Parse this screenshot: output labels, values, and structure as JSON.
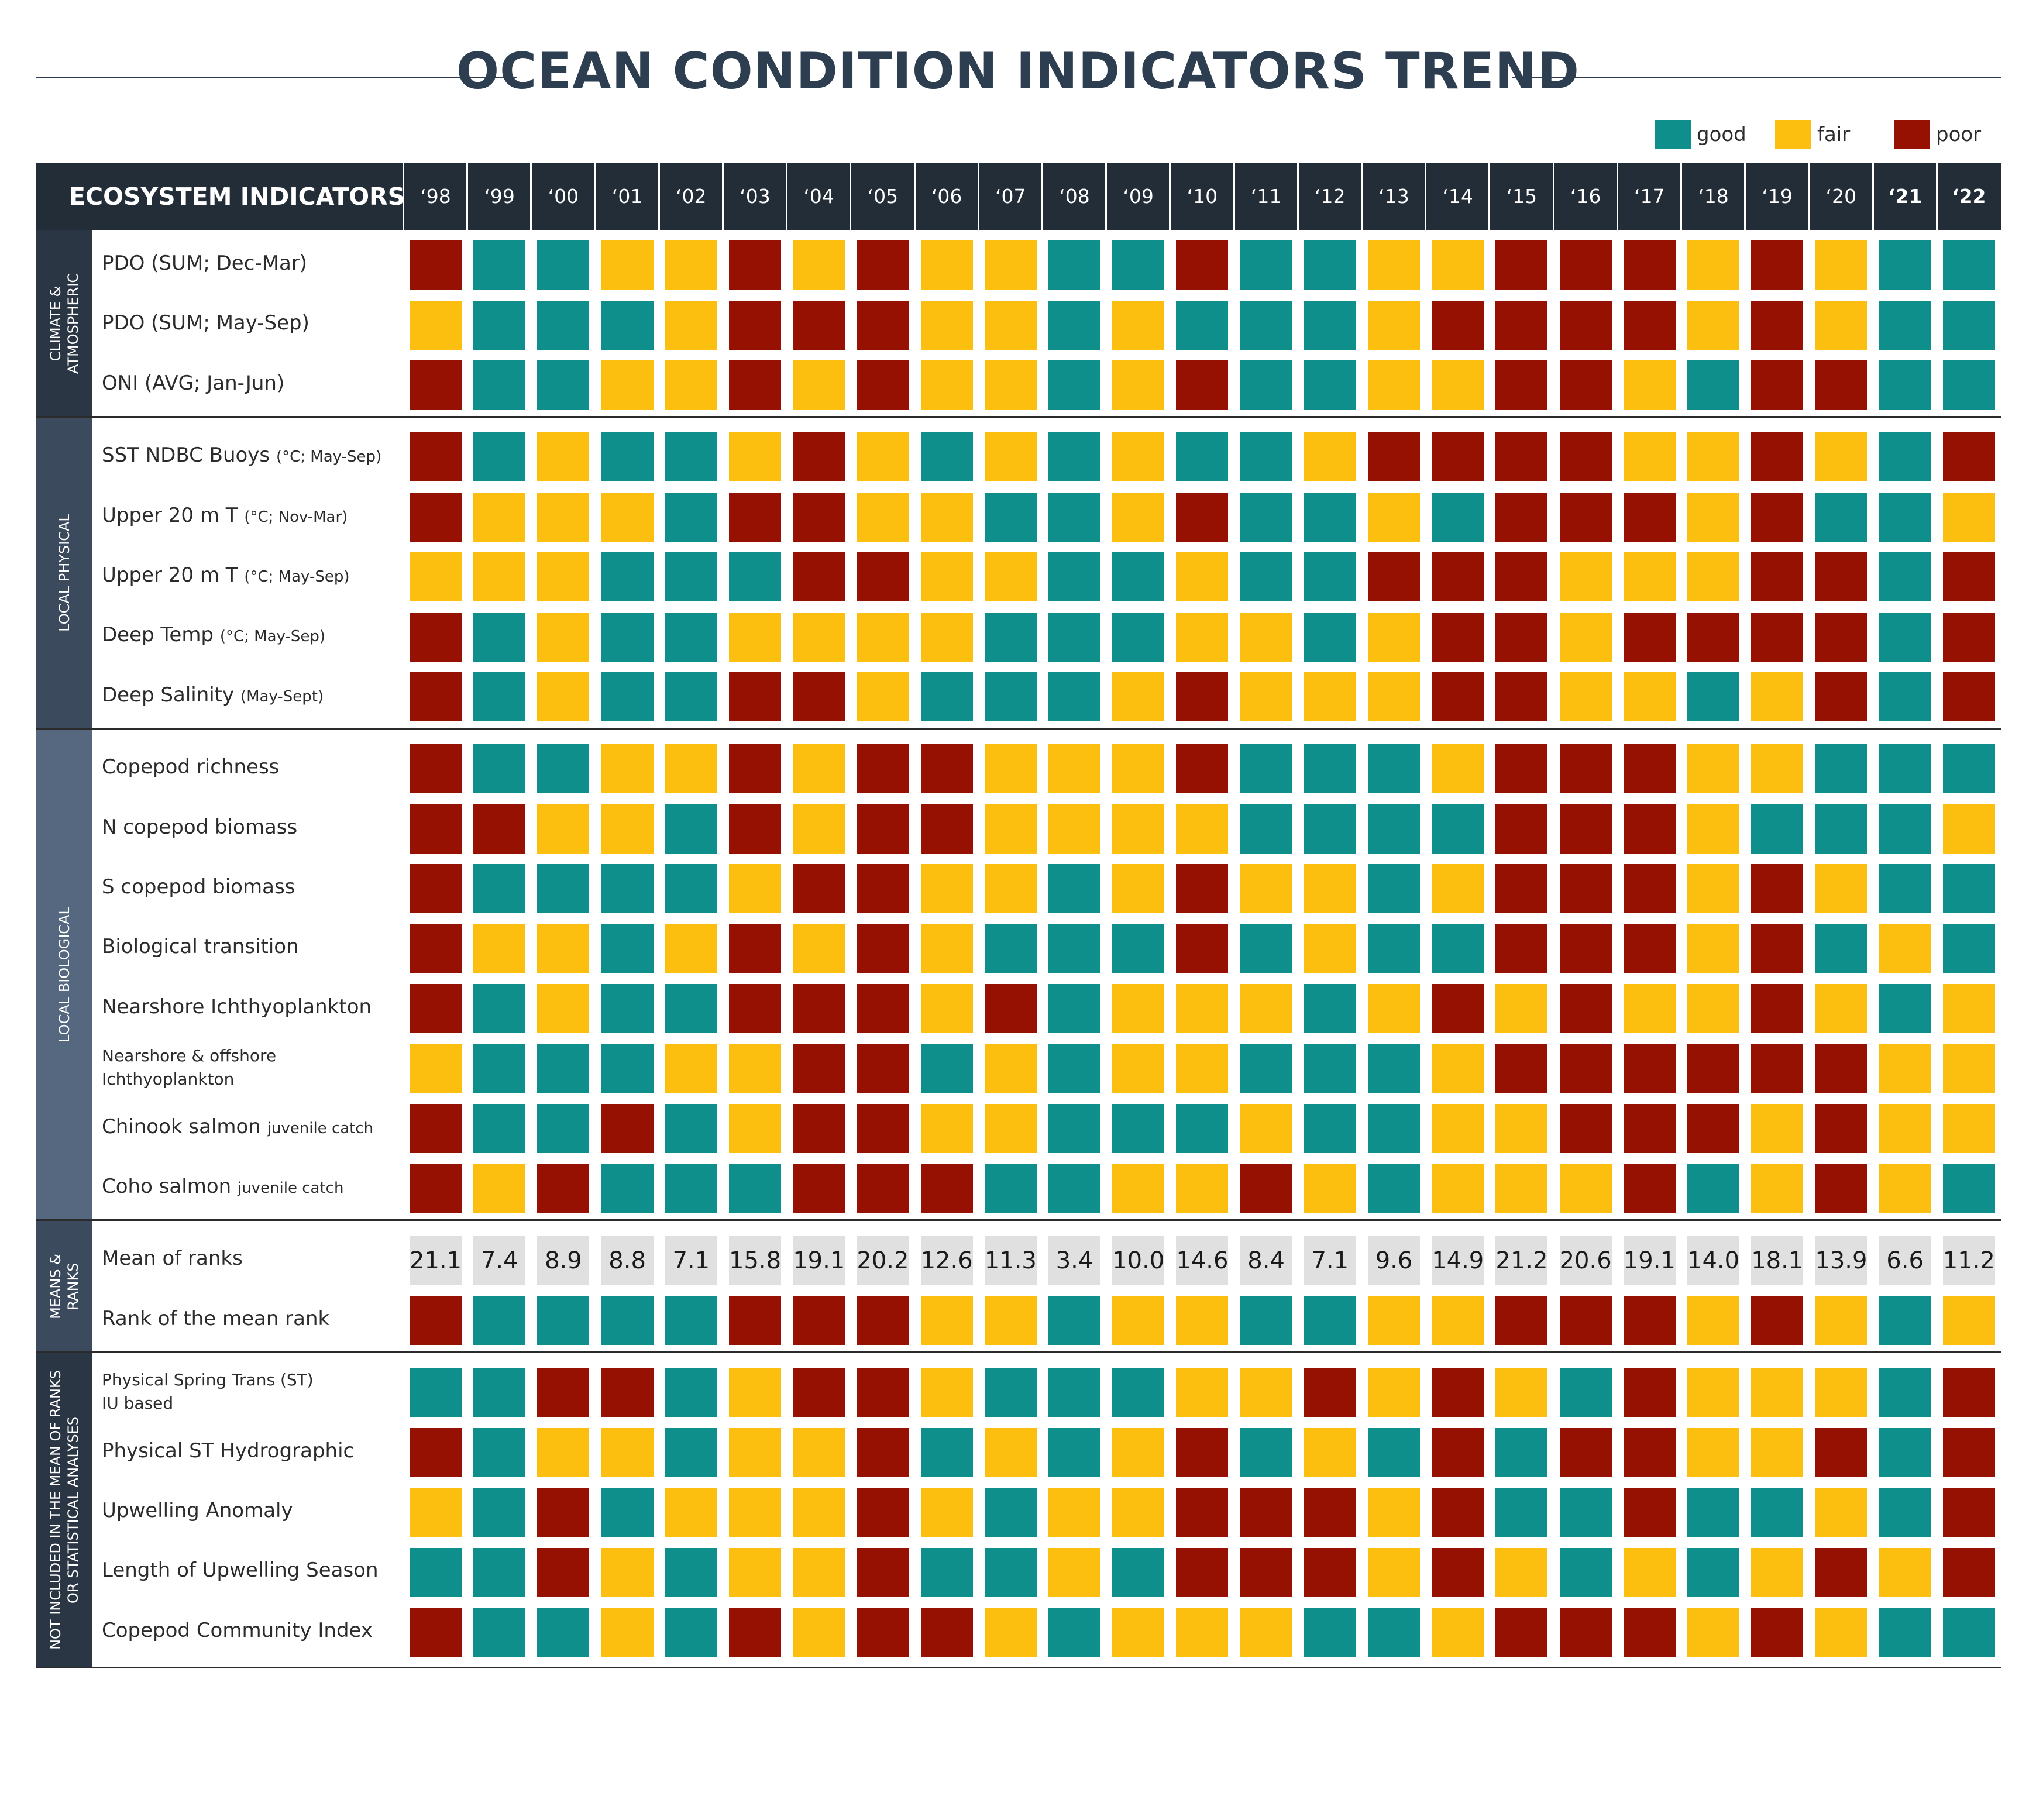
{
  "title": "OCEAN CONDITION INDICATORS TREND",
  "legend": [
    {
      "key": "good",
      "label": "good",
      "color": "#0e8f8c"
    },
    {
      "key": "fair",
      "label": "fair",
      "color": "#fdbf0f"
    },
    {
      "key": "poor",
      "label": "poor",
      "color": "#971102"
    }
  ],
  "colors": {
    "good": "#0e8f8c",
    "fair": "#fdbf0f",
    "poor": "#971102",
    "header_bg": "#232d38",
    "mean_cell_bg": "#e0e0e0"
  },
  "header": {
    "title": "ECOSYSTEM INDICATORS"
  },
  "chart_data": {
    "type": "heatmap",
    "title": "OCEAN CONDITION INDICATORS TREND",
    "categories": [
      "‘98",
      "‘99",
      "‘00",
      "‘01",
      "‘02",
      "‘03",
      "‘04",
      "‘05",
      "‘06",
      "‘07",
      "‘08",
      "‘09",
      "‘10",
      "‘11",
      "‘12",
      "‘13",
      "‘14",
      "‘15",
      "‘16",
      "‘17",
      "‘18",
      "‘19",
      "‘20",
      "‘21",
      "‘22"
    ],
    "bold_categories": [
      "‘21",
      "‘22"
    ],
    "groups": [
      {
        "label": "CLIMATE & ATMOSPHERIC",
        "color": "#2b3644",
        "rows": [
          {
            "label": "PDO (SUM; Dec-Mar)",
            "small": "",
            "values": [
              "poor",
              "good",
              "good",
              "fair",
              "fair",
              "poor",
              "fair",
              "poor",
              "fair",
              "fair",
              "good",
              "good",
              "poor",
              "good",
              "good",
              "fair",
              "fair",
              "poor",
              "poor",
              "poor",
              "fair",
              "poor",
              "fair",
              "good",
              "good"
            ]
          },
          {
            "label": "PDO (SUM; May-Sep)",
            "small": "",
            "values": [
              "fair",
              "good",
              "good",
              "good",
              "fair",
              "poor",
              "poor",
              "poor",
              "fair",
              "fair",
              "good",
              "fair",
              "good",
              "good",
              "good",
              "fair",
              "poor",
              "poor",
              "poor",
              "poor",
              "fair",
              "poor",
              "fair",
              "good",
              "good"
            ]
          },
          {
            "label": "ONI (AVG; Jan-Jun)",
            "small": "",
            "values": [
              "poor",
              "good",
              "good",
              "fair",
              "fair",
              "poor",
              "fair",
              "poor",
              "fair",
              "fair",
              "good",
              "fair",
              "poor",
              "good",
              "good",
              "fair",
              "fair",
              "poor",
              "poor",
              "fair",
              "good",
              "poor",
              "poor",
              "good",
              "good"
            ]
          }
        ]
      },
      {
        "label": "LOCAL PHYSICAL",
        "color": "#3b4a5d",
        "rows": [
          {
            "label": "SST NDBC Buoys ",
            "small": "(°C; May-Sep)",
            "values": [
              "poor",
              "good",
              "fair",
              "good",
              "good",
              "fair",
              "poor",
              "fair",
              "good",
              "fair",
              "good",
              "fair",
              "good",
              "good",
              "fair",
              "poor",
              "poor",
              "poor",
              "poor",
              "fair",
              "fair",
              "poor",
              "fair",
              "good",
              "poor"
            ]
          },
          {
            "label": "Upper 20 m T ",
            "small": "(°C; Nov-Mar)",
            "values": [
              "poor",
              "fair",
              "fair",
              "fair",
              "good",
              "poor",
              "poor",
              "fair",
              "fair",
              "good",
              "good",
              "fair",
              "poor",
              "good",
              "good",
              "fair",
              "good",
              "poor",
              "poor",
              "poor",
              "fair",
              "poor",
              "good",
              "good",
              "fair"
            ]
          },
          {
            "label": "Upper 20 m T ",
            "small": "(°C; May-Sep)",
            "values": [
              "fair",
              "fair",
              "fair",
              "good",
              "good",
              "good",
              "poor",
              "poor",
              "fair",
              "fair",
              "good",
              "good",
              "fair",
              "good",
              "good",
              "poor",
              "poor",
              "poor",
              "fair",
              "fair",
              "fair",
              "poor",
              "poor",
              "good",
              "poor"
            ]
          },
          {
            "label": "Deep Temp ",
            "small": "(°C; May-Sep)",
            "values": [
              "poor",
              "good",
              "fair",
              "good",
              "good",
              "fair",
              "fair",
              "fair",
              "fair",
              "good",
              "good",
              "good",
              "fair",
              "fair",
              "good",
              "fair",
              "poor",
              "poor",
              "fair",
              "poor",
              "poor",
              "poor",
              "poor",
              "good",
              "poor"
            ]
          },
          {
            "label": "Deep Salinity ",
            "small": "(May-Sept)",
            "values": [
              "poor",
              "good",
              "fair",
              "good",
              "good",
              "poor",
              "poor",
              "fair",
              "good",
              "good",
              "good",
              "fair",
              "poor",
              "fair",
              "fair",
              "fair",
              "poor",
              "poor",
              "fair",
              "fair",
              "good",
              "fair",
              "poor",
              "good",
              "poor"
            ]
          }
        ]
      },
      {
        "label": "LOCAL BIOLOGICAL",
        "color": "#56687f",
        "rows": [
          {
            "label": "Copepod richness",
            "small": "",
            "values": [
              "poor",
              "good",
              "good",
              "fair",
              "fair",
              "poor",
              "fair",
              "poor",
              "poor",
              "fair",
              "fair",
              "fair",
              "poor",
              "good",
              "good",
              "good",
              "fair",
              "poor",
              "poor",
              "poor",
              "fair",
              "fair",
              "good",
              "good",
              "good"
            ]
          },
          {
            "label": "N copepod biomass",
            "small": "",
            "values": [
              "poor",
              "poor",
              "fair",
              "fair",
              "good",
              "poor",
              "fair",
              "poor",
              "poor",
              "fair",
              "fair",
              "fair",
              "fair",
              "good",
              "good",
              "good",
              "good",
              "poor",
              "poor",
              "poor",
              "fair",
              "good",
              "good",
              "good",
              "fair"
            ]
          },
          {
            "label": "S copepod biomass",
            "small": "",
            "values": [
              "poor",
              "good",
              "good",
              "good",
              "good",
              "fair",
              "poor",
              "poor",
              "fair",
              "fair",
              "good",
              "fair",
              "poor",
              "fair",
              "fair",
              "good",
              "fair",
              "poor",
              "poor",
              "poor",
              "fair",
              "poor",
              "fair",
              "good",
              "good"
            ]
          },
          {
            "label": "Biological transition",
            "small": "",
            "values": [
              "poor",
              "fair",
              "fair",
              "good",
              "fair",
              "poor",
              "fair",
              "poor",
              "fair",
              "good",
              "good",
              "good",
              "poor",
              "good",
              "fair",
              "good",
              "good",
              "poor",
              "poor",
              "poor",
              "fair",
              "poor",
              "good",
              "fair",
              "good"
            ]
          },
          {
            "label": "Nearshore Ichthyoplankton",
            "small": "",
            "values": [
              "poor",
              "good",
              "fair",
              "good",
              "good",
              "poor",
              "poor",
              "poor",
              "fair",
              "poor",
              "good",
              "fair",
              "fair",
              "fair",
              "good",
              "fair",
              "poor",
              "fair",
              "poor",
              "fair",
              "fair",
              "poor",
              "fair",
              "good",
              "fair"
            ]
          },
          {
            "label": "Nearshore & offshore",
            "label2": "Ichthyoplankton",
            "small": "",
            "values": [
              "fair",
              "good",
              "good",
              "good",
              "fair",
              "fair",
              "poor",
              "poor",
              "good",
              "fair",
              "good",
              "fair",
              "fair",
              "good",
              "good",
              "good",
              "fair",
              "poor",
              "poor",
              "poor",
              "poor",
              "poor",
              "poor",
              "fair",
              "fair"
            ]
          },
          {
            "label": "Chinook salmon ",
            "small": "juvenile catch",
            "values": [
              "poor",
              "good",
              "good",
              "poor",
              "good",
              "fair",
              "poor",
              "poor",
              "fair",
              "fair",
              "good",
              "good",
              "good",
              "fair",
              "good",
              "good",
              "fair",
              "fair",
              "poor",
              "poor",
              "poor",
              "fair",
              "poor",
              "fair",
              "fair"
            ]
          },
          {
            "label": "Coho salmon ",
            "small": "juvenile catch",
            "values": [
              "poor",
              "fair",
              "poor",
              "good",
              "good",
              "good",
              "poor",
              "poor",
              "poor",
              "good",
              "good",
              "fair",
              "fair",
              "poor",
              "fair",
              "good",
              "fair",
              "fair",
              "fair",
              "poor",
              "good",
              "fair",
              "poor",
              "fair",
              "good"
            ]
          }
        ]
      },
      {
        "label": "MEANS & RANKS",
        "color": "#3b4a5d",
        "rows": [
          {
            "label": "Mean of ranks",
            "small": "",
            "kind": "number",
            "numbers": [
              "21.1",
              "7.4",
              "8.9",
              "8.8",
              "7.1",
              "15.8",
              "19.1",
              "20.2",
              "12.6",
              "11.3",
              "3.4",
              "10.0",
              "14.6",
              "8.4",
              "7.1",
              "9.6",
              "14.9",
              "21.2",
              "20.6",
              "19.1",
              "14.0",
              "18.1",
              "13.9",
              "6.6",
              "11.2"
            ]
          },
          {
            "label": "Rank of the mean rank",
            "small": "",
            "values": [
              "poor",
              "good",
              "good",
              "good",
              "good",
              "poor",
              "poor",
              "poor",
              "fair",
              "fair",
              "good",
              "fair",
              "fair",
              "good",
              "good",
              "fair",
              "fair",
              "poor",
              "poor",
              "poor",
              "fair",
              "poor",
              "fair",
              "good",
              "fair"
            ]
          }
        ]
      },
      {
        "label": "NOT INCLUDED IN THE MEAN OF RANKS OR STATISTICAL ANALYSES",
        "color": "#2b3644",
        "rows": [
          {
            "label": "Physical Spring Trans (ST)",
            "label2": "IU based",
            "small": "",
            "values": [
              "good",
              "good",
              "poor",
              "poor",
              "good",
              "fair",
              "poor",
              "poor",
              "fair",
              "good",
              "good",
              "good",
              "fair",
              "fair",
              "poor",
              "fair",
              "poor",
              "fair",
              "good",
              "poor",
              "fair",
              "fair",
              "fair",
              "good",
              "poor"
            ]
          },
          {
            "label": "Physical ST Hydrographic",
            "small": "",
            "values": [
              "poor",
              "good",
              "fair",
              "fair",
              "good",
              "fair",
              "fair",
              "poor",
              "good",
              "fair",
              "good",
              "fair",
              "poor",
              "good",
              "fair",
              "good",
              "poor",
              "good",
              "poor",
              "poor",
              "fair",
              "fair",
              "poor",
              "good",
              "poor"
            ]
          },
          {
            "label": "Upwelling Anomaly",
            "small": "",
            "values": [
              "fair",
              "good",
              "poor",
              "good",
              "fair",
              "fair",
              "fair",
              "poor",
              "fair",
              "good",
              "fair",
              "fair",
              "poor",
              "poor",
              "poor",
              "fair",
              "poor",
              "good",
              "good",
              "poor",
              "good",
              "good",
              "fair",
              "good",
              "poor"
            ]
          },
          {
            "label": "Length of Upwelling Season",
            "small": "",
            "values": [
              "good",
              "good",
              "poor",
              "fair",
              "good",
              "fair",
              "fair",
              "poor",
              "good",
              "good",
              "fair",
              "good",
              "poor",
              "poor",
              "poor",
              "fair",
              "poor",
              "fair",
              "good",
              "fair",
              "good",
              "fair",
              "poor",
              "fair",
              "poor"
            ]
          },
          {
            "label": "Copepod Community Index",
            "small": "",
            "values": [
              "poor",
              "good",
              "good",
              "fair",
              "good",
              "poor",
              "fair",
              "poor",
              "poor",
              "fair",
              "good",
              "fair",
              "fair",
              "fair",
              "good",
              "good",
              "fair",
              "poor",
              "poor",
              "poor",
              "fair",
              "poor",
              "fair",
              "good",
              "good"
            ]
          }
        ]
      }
    ]
  }
}
